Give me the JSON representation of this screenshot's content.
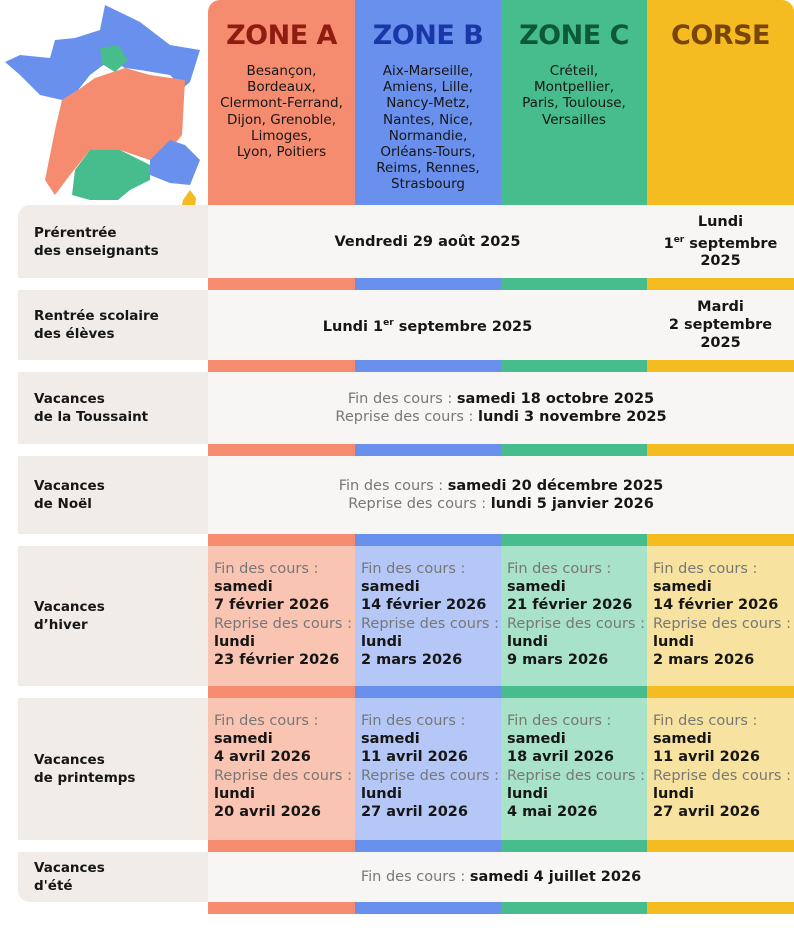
{
  "zones": [
    {
      "name": "ZONE A",
      "cities": [
        "Besançon,",
        "Bordeaux,",
        "Clermont-Ferrand,",
        "Dijon, Grenoble,",
        "Limoges,",
        "Lyon, Poitiers"
      ],
      "color": "#f58b6f"
    },
    {
      "name": "ZONE B",
      "cities": [
        "Aix-Marseille,",
        "Amiens, Lille,",
        "Nancy-Metz,",
        "Nantes, Nice,",
        "Normandie,",
        "Orléans-Tours,",
        "Reims, Rennes,",
        "Strasbourg"
      ],
      "color": "#6a90ee"
    },
    {
      "name": "ZONE C",
      "cities": [
        "Créteil,",
        "Montpellier,",
        "Paris, Toulouse,",
        "Versailles"
      ],
      "color": "#47bc8c"
    },
    {
      "name": "CORSE",
      "cities": [],
      "color": "#f5bc22"
    }
  ],
  "rows": {
    "prerentree": {
      "label1": "Prérentrée",
      "label2": "des enseignants",
      "main": "Vendredi 29 août 2025",
      "corse1": "Lundi",
      "corse2a": "1",
      "corse2sup": "er",
      "corse2b": " septembre",
      "corse3": "2025"
    },
    "rentree": {
      "label1": "Rentrée scolaire",
      "label2": "des élèves",
      "main_a": "Lundi 1",
      "main_sup": "er",
      "main_b": " septembre 2025",
      "corse1": "Mardi",
      "corse2": "2 septembre",
      "corse3": "2025"
    },
    "toussaint": {
      "label1": "Vacances",
      "label2": "de la Toussaint",
      "fin_label": "Fin des cours : ",
      "fin": "samedi 18 octobre 2025",
      "rep_label": "Reprise des cours : ",
      "rep": "lundi 3 novembre 2025"
    },
    "noel": {
      "label1": "Vacances",
      "label2": "de Noël",
      "fin_label": "Fin des cours : ",
      "fin": "samedi 20 décembre 2025",
      "rep_label": "Reprise des cours : ",
      "rep": "lundi 5 janvier 2026"
    },
    "hiver": {
      "label1": "Vacances",
      "label2": "d’hiver",
      "cells": [
        {
          "fin_label": "Fin des cours :",
          "fin_day": "samedi",
          "fin": "7 février 2026",
          "rep_label": "Reprise des cours :",
          "rep_day": "lundi",
          "rep": "23 février 2026"
        },
        {
          "fin_label": "Fin des cours :",
          "fin_day": "samedi",
          "fin": "14 février 2026",
          "rep_label": "Reprise des cours :",
          "rep_day": "lundi",
          "rep": "2 mars 2026"
        },
        {
          "fin_label": "Fin des cours :",
          "fin_day": "samedi",
          "fin": "21 février 2026",
          "rep_label": "Reprise des cours :",
          "rep_day": "lundi",
          "rep": "9 mars 2026"
        },
        {
          "fin_label": "Fin des cours :",
          "fin_day": "samedi",
          "fin": "14 février 2026",
          "rep_label": "Reprise des cours :",
          "rep_day": "lundi",
          "rep": "2 mars 2026"
        }
      ]
    },
    "printemps": {
      "label1": "Vacances",
      "label2": "de printemps",
      "cells": [
        {
          "fin_label": "Fin des cours :",
          "fin_day": "samedi",
          "fin": "4 avril 2026",
          "rep_label": "Reprise des cours :",
          "rep_day": "lundi",
          "rep": "20 avril 2026"
        },
        {
          "fin_label": "Fin des cours :",
          "fin_day": "samedi",
          "fin": "11 avril 2026",
          "rep_label": "Reprise des cours :",
          "rep_day": "lundi",
          "rep": "27 avril 2026"
        },
        {
          "fin_label": "Fin des cours :",
          "fin_day": "samedi",
          "fin": "18 avril 2026",
          "rep_label": "Reprise des cours :",
          "rep_day": "lundi",
          "rep": "4 mai 2026"
        },
        {
          "fin_label": "Fin des cours :",
          "fin_day": "samedi",
          "fin": "11 avril 2026",
          "rep_label": "Reprise des cours :",
          "rep_day": "lundi",
          "rep": "27 avril 2026"
        }
      ]
    },
    "ete": {
      "label1": "Vacances",
      "label2": "d'été",
      "fin_label": "Fin des cours : ",
      "fin": "samedi 4 juillet 2026"
    }
  }
}
